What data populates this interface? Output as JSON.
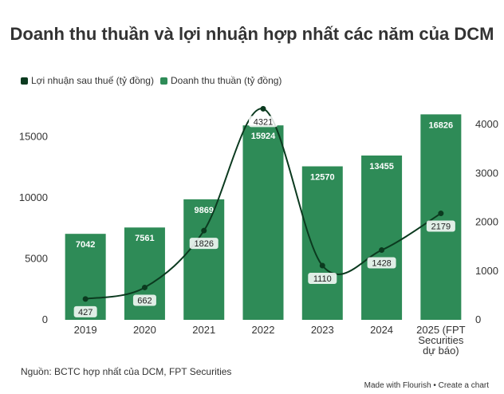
{
  "chart_data": {
    "type": "bar",
    "title": "Doanh thu thuần và lợi nhuận hợp nhất các năm của DCM",
    "categories": [
      "2019",
      "2020",
      "2021",
      "2022",
      "2023",
      "2024",
      "2025 (FPT Securities dự báo)"
    ],
    "series": [
      {
        "name": "Lợi nhuận sau thuế (tỷ đồng)",
        "type": "line",
        "axis": "right",
        "color": "#0b3a1f",
        "values": [
          427,
          662,
          1826,
          4321,
          1110,
          1428,
          2179
        ]
      },
      {
        "name": "Doanh thu thuần (tỷ đồng)",
        "type": "bar",
        "axis": "left",
        "color": "#2e8b57",
        "values": [
          7042,
          7561,
          9869,
          15924,
          12570,
          13455,
          16826
        ]
      }
    ],
    "ylim_left": [
      0,
      17700
    ],
    "yticks_left": [
      0,
      5000,
      10000,
      15000
    ],
    "ylim_right": [
      0,
      4425
    ],
    "yticks_right": [
      0,
      1000,
      2000,
      3000,
      4000
    ],
    "legend_position": "top-left",
    "grid": false
  },
  "source": "Nguồn: BCTC hợp nhất của DCM, FPT Securities",
  "footer": {
    "made_with": "Made with Flourish",
    "separator": "•",
    "create": "Create a chart"
  }
}
